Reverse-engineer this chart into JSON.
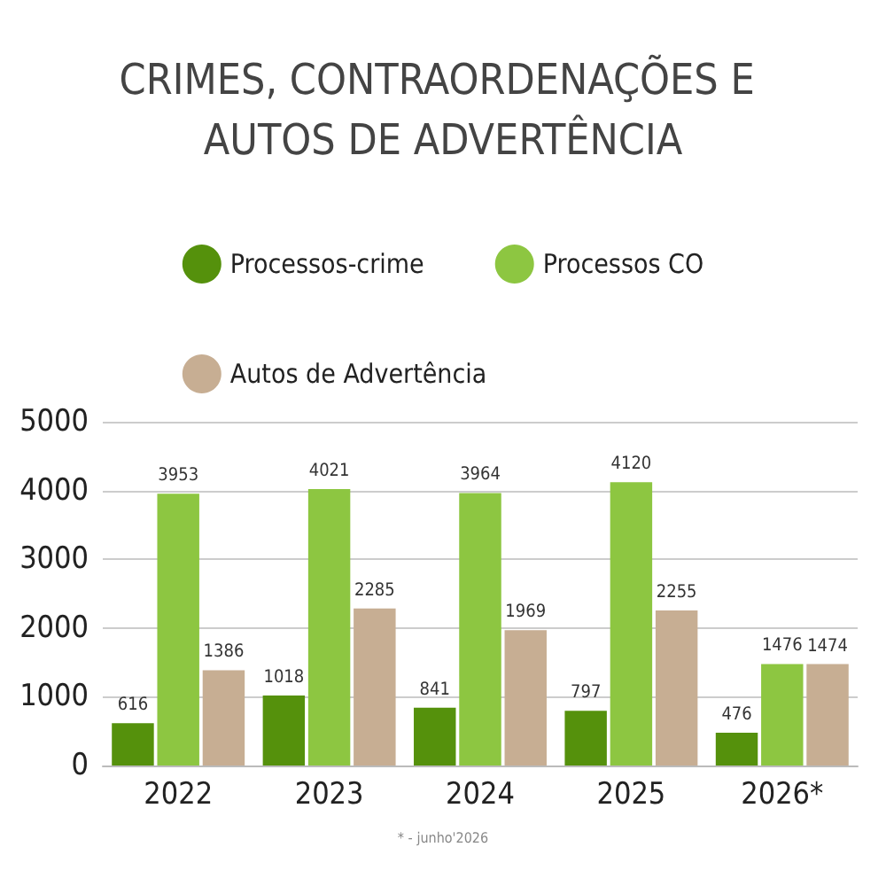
{
  "chart_data": {
    "type": "bar",
    "title": "CRIMES, CONTRAORDENAÇÕES E AUTOS DE ADVERTÊNCIA",
    "categories": [
      "2022",
      "2023",
      "2024",
      "2025",
      "2026*"
    ],
    "series": [
      {
        "name": "Processos-crime",
        "color": "#55910c",
        "values": [
          616,
          1018,
          841,
          797,
          476
        ]
      },
      {
        "name": "Processos CO",
        "color": "#8dc641",
        "values": [
          3953,
          4021,
          3964,
          4120,
          1476
        ]
      },
      {
        "name": "Autos de Advertência",
        "color": "#c7ae93",
        "values": [
          1386,
          2285,
          1969,
          2255,
          1474
        ]
      }
    ],
    "ylim": [
      0,
      5000
    ],
    "yticks": [
      0,
      1000,
      2000,
      3000,
      4000,
      5000
    ],
    "grid": "y",
    "legend": "top",
    "data_labels": true,
    "annotations": [
      "* - junho'2026"
    ]
  }
}
